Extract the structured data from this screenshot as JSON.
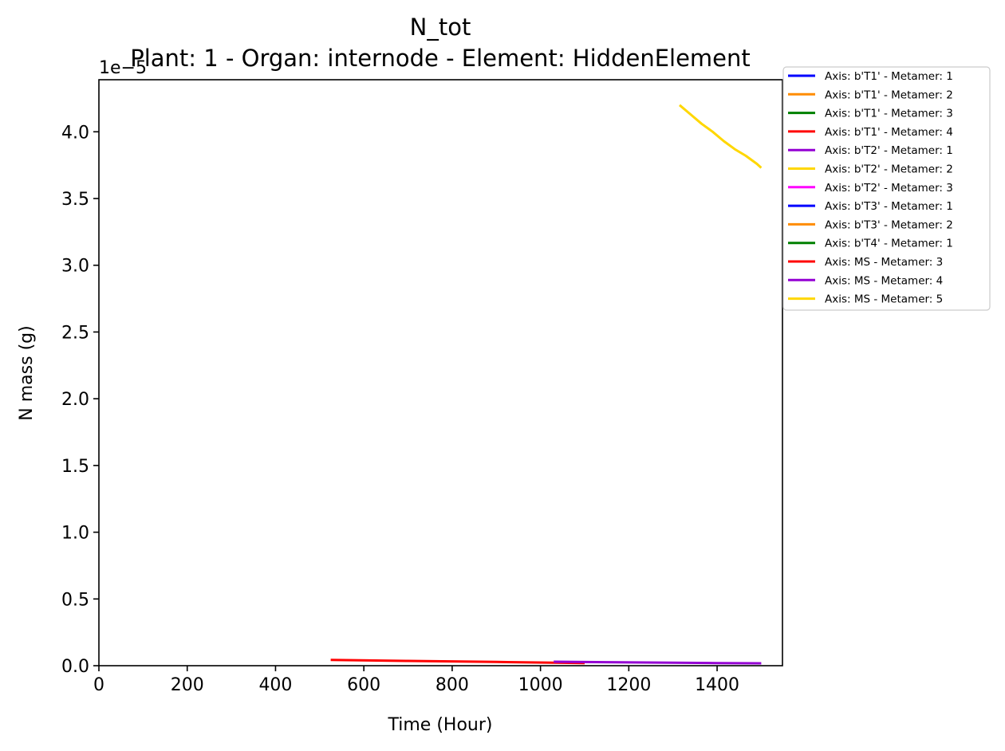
{
  "chart_data": {
    "type": "line",
    "title": "N_tot",
    "subtitle": "Plant: 1 - Organ: internode - Element: HiddenElement",
    "xlabel": "Time (Hour)",
    "ylabel": "N mass (g)",
    "y_offset_label": "1e−5",
    "xlim": [
      0,
      1548
    ],
    "ylim": [
      0,
      4.39
    ],
    "y_scale_note": "values in units of 1e-5 g",
    "xticks": [
      0,
      200,
      400,
      600,
      800,
      1000,
      1200,
      1400
    ],
    "xtick_labels": [
      "0",
      "200",
      "400",
      "600",
      "800",
      "1000",
      "1200",
      "1400"
    ],
    "yticks": [
      0.0,
      0.5,
      1.0,
      1.5,
      2.0,
      2.5,
      3.0,
      3.5,
      4.0
    ],
    "ytick_labels": [
      "0.0",
      "0.5",
      "1.0",
      "1.5",
      "2.0",
      "2.5",
      "3.0",
      "3.5",
      "4.0"
    ],
    "legend_position": "outside right, top",
    "grid": false,
    "series": [
      {
        "name": "Axis: b'T1' - Metamer: 1",
        "color": "#0000ff",
        "x": [],
        "y": []
      },
      {
        "name": "Axis: b'T1' - Metamer: 2",
        "color": "#ff8c00",
        "x": [],
        "y": []
      },
      {
        "name": "Axis: b'T1' - Metamer: 3",
        "color": "#008000",
        "x": [],
        "y": []
      },
      {
        "name": "Axis: b'T1' - Metamer: 4",
        "color": "#ff0000",
        "x": [],
        "y": []
      },
      {
        "name": "Axis: b'T2' - Metamer: 1",
        "color": "#9400d3",
        "x": [],
        "y": []
      },
      {
        "name": "Axis: b'T2' - Metamer: 2",
        "color": "#ffd700",
        "x": [],
        "y": []
      },
      {
        "name": "Axis: b'T2' - Metamer: 3",
        "color": "#ff00ff",
        "x": [],
        "y": []
      },
      {
        "name": "Axis: b'T3' - Metamer: 1",
        "color": "#0000ff",
        "x": [],
        "y": []
      },
      {
        "name": "Axis: b'T3' - Metamer: 2",
        "color": "#ff8c00",
        "x": [],
        "y": []
      },
      {
        "name": "Axis: b'T4' - Metamer: 1",
        "color": "#008000",
        "x": [],
        "y": []
      },
      {
        "name": "Axis: MS - Metamer: 3",
        "color": "#ff0000",
        "x": [
          525,
          700,
          900,
          1030,
          1100
        ],
        "y": [
          0.043,
          0.036,
          0.028,
          0.022,
          0.02
        ]
      },
      {
        "name": "Axis: MS - Metamer: 4",
        "color": "#9400d3",
        "x": [
          1030,
          1150,
          1300,
          1400,
          1500
        ],
        "y": [
          0.03,
          0.026,
          0.022,
          0.02,
          0.018
        ]
      },
      {
        "name": "Axis: MS - Metamer: 5",
        "color": "#ffd700",
        "x": [
          1315,
          1340,
          1365,
          1390,
          1415,
          1440,
          1465,
          1490,
          1500
        ],
        "y": [
          4.2,
          4.13,
          4.06,
          4.0,
          3.93,
          3.87,
          3.82,
          3.76,
          3.73
        ]
      }
    ]
  }
}
